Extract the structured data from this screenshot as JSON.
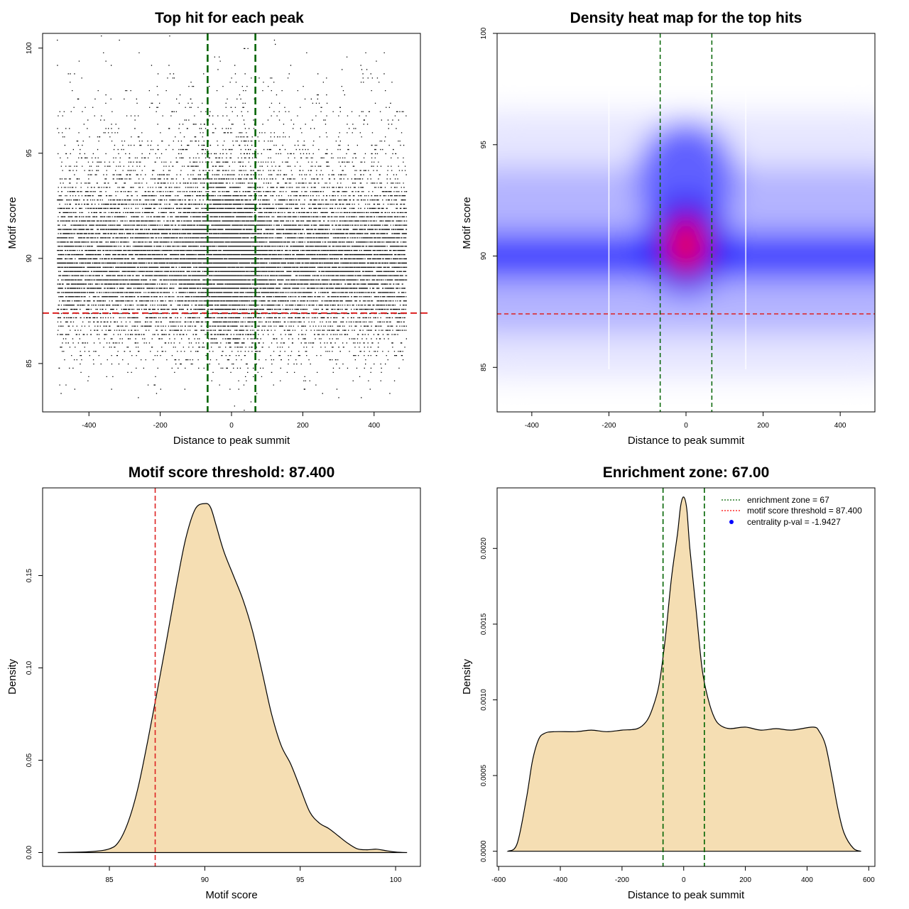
{
  "chart_data": [
    {
      "type": "scatter",
      "title": "Top hit for each peak",
      "xlabel": "Distance to peak summit",
      "ylabel": "Motif score",
      "xlim": [
        -530,
        530
      ],
      "ylim": [
        82.7,
        100.7
      ],
      "xticks": [
        -400,
        -200,
        0,
        200,
        400
      ],
      "yticks": [
        85,
        90,
        95,
        100
      ],
      "x_range": [
        -490,
        490
      ],
      "center_score": 90,
      "score_spread": 2,
      "points_depicted": "about 20000 points, dense band at 87-93, enriched near x=0",
      "threshold": 87.4,
      "enrichment_zone": [
        -67,
        67
      ],
      "threshold_color": "#dd2222",
      "zone_color": "#006400"
    },
    {
      "type": "heatmap",
      "title": "Density heat map for the top hits",
      "xlabel": "Distance to peak summit",
      "ylabel": "Motif score",
      "xlim": [
        -490,
        490
      ],
      "ylim": [
        83,
        100
      ],
      "xticks": [
        -400,
        -200,
        0,
        200,
        400
      ],
      "yticks": [
        85,
        90,
        95,
        100
      ],
      "hotspot": {
        "x": 0,
        "y": 90.5
      },
      "background_band_score": 90,
      "white_columns": [
        -200,
        155
      ],
      "color_scale": [
        "#ffffff",
        "#0000ff",
        "#ff0000"
      ],
      "threshold": 87.4,
      "enrichment_zone": [
        -67,
        67
      ]
    },
    {
      "type": "area",
      "title": "Motif score threshold: 87.400",
      "xlabel": "Motif score",
      "ylabel": "Density",
      "xlim": [
        81.5,
        101.3
      ],
      "ylim": [
        -0.0075,
        0.1975
      ],
      "xticks": [
        85,
        90,
        95,
        100
      ],
      "yticks": [
        0.0,
        0.05,
        0.1,
        0.15
      ],
      "ytick_labels": [
        "0.00",
        "0.05",
        "0.10",
        "0.15"
      ],
      "x": [
        82.3,
        84.0,
        85.0,
        85.5,
        86.0,
        86.5,
        87.0,
        87.5,
        88.0,
        88.5,
        89.0,
        89.5,
        90.0,
        90.3,
        90.6,
        91.0,
        91.5,
        92.0,
        92.5,
        93.0,
        93.5,
        94.0,
        94.5,
        95.0,
        95.5,
        96.0,
        96.5,
        97.0,
        97.5,
        98.0,
        98.5,
        99.0,
        99.5,
        100.0,
        100.6
      ],
      "y": [
        0.0,
        0.0005,
        0.002,
        0.006,
        0.017,
        0.035,
        0.06,
        0.087,
        0.115,
        0.144,
        0.17,
        0.186,
        0.189,
        0.187,
        0.177,
        0.163,
        0.15,
        0.137,
        0.12,
        0.098,
        0.075,
        0.058,
        0.048,
        0.035,
        0.022,
        0.016,
        0.013,
        0.009,
        0.005,
        0.002,
        0.0015,
        0.0018,
        0.001,
        0.0003,
        0.0
      ],
      "fill_color": "#f5deb3",
      "threshold": 87.4,
      "threshold_color": "#dd2222"
    },
    {
      "type": "area",
      "title": "Enrichment zone: 67.00",
      "xlabel": "Distance to peak summit",
      "ylabel": "Density",
      "xlim": [
        -605,
        620
      ],
      "ylim": [
        -0.0001,
        0.0024
      ],
      "xticks": [
        -600,
        -400,
        -200,
        0,
        200,
        400,
        600
      ],
      "yticks": [
        0.0,
        0.0005,
        0.001,
        0.0015,
        0.002
      ],
      "ytick_labels": [
        "0.0000",
        "0.0005",
        "0.0010",
        "0.0015",
        "0.0020"
      ],
      "x": [
        -570,
        -540,
        -510,
        -490,
        -470,
        -450,
        -420,
        -350,
        -300,
        -250,
        -200,
        -150,
        -120,
        -100,
        -80,
        -60,
        -40,
        -20,
        -10,
        0,
        10,
        20,
        40,
        60,
        80,
        100,
        120,
        150,
        200,
        250,
        300,
        350,
        420,
        440,
        460,
        480,
        500,
        520,
        550,
        575
      ],
      "y": [
        0.0,
        5e-05,
        0.00035,
        0.0006,
        0.00074,
        0.00078,
        0.00079,
        0.00079,
        0.0008,
        0.00079,
        0.0008,
        0.00081,
        0.00086,
        0.00095,
        0.0011,
        0.0014,
        0.0018,
        0.0021,
        0.00228,
        0.00234,
        0.00226,
        0.002,
        0.0016,
        0.0012,
        0.001,
        0.00088,
        0.00083,
        0.00081,
        0.00082,
        0.0008,
        0.00081,
        0.0008,
        0.00082,
        0.00079,
        0.0007,
        0.0005,
        0.00028,
        0.00012,
        2e-05,
        0.0
      ],
      "fill_color": "#f5deb3",
      "enrichment_zone": [
        -67,
        67
      ],
      "zone_color": "#006400"
    }
  ],
  "legend": {
    "items": [
      {
        "label": "enrichment zone = 67",
        "color": "#006400",
        "kind": "dotted-line"
      },
      {
        "label": "motif score threshold = 87.400",
        "color": "#ff0000",
        "kind": "dotted-line"
      },
      {
        "label": "centrality p-val = -1.9427",
        "color": "#0000ff",
        "kind": "dot"
      }
    ]
  }
}
